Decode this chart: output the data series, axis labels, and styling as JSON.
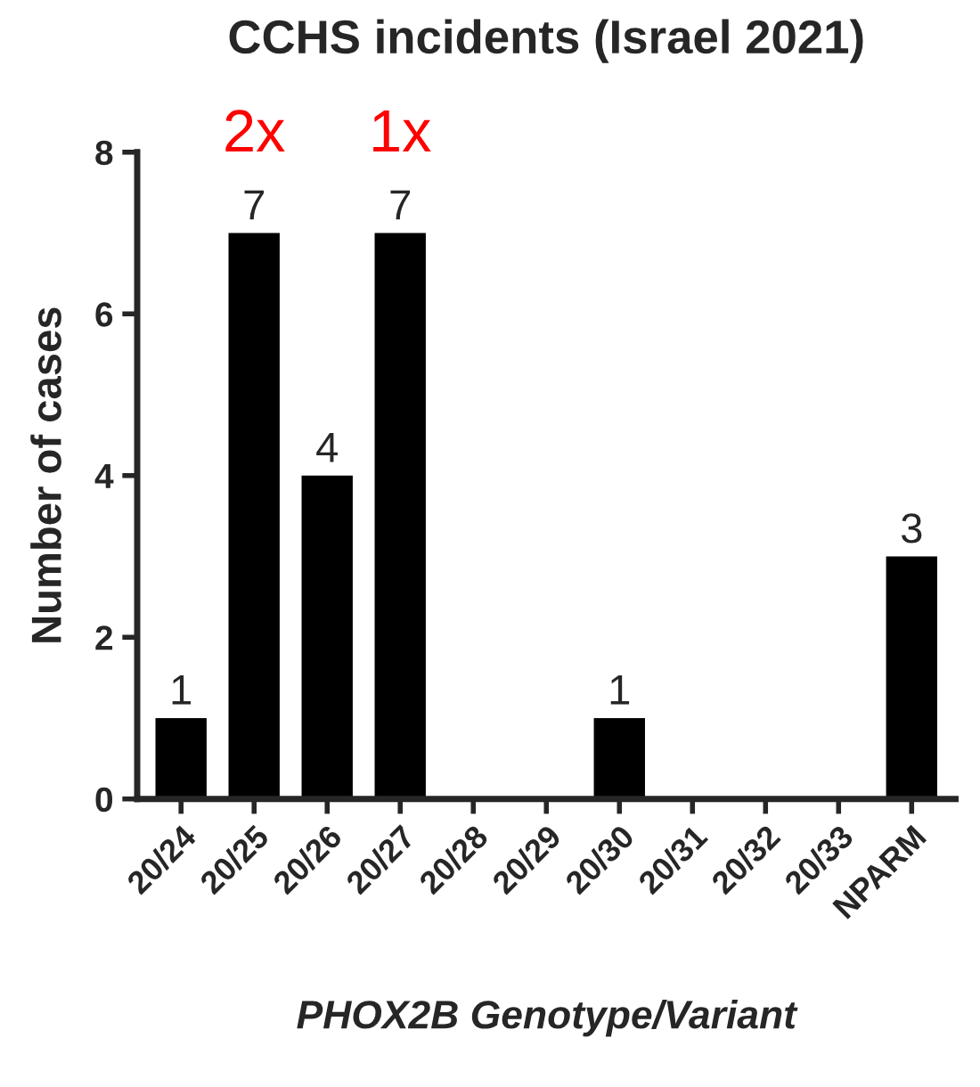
{
  "chart_data": {
    "type": "bar",
    "title": "CCHS incidents (Israel 2021)",
    "xlabel": "PHOX2B Genotype/Variant",
    "ylabel": "Number of cases",
    "categories": [
      "20/24",
      "20/25",
      "20/26",
      "20/27",
      "20/28",
      "20/29",
      "20/30",
      "20/31",
      "20/32",
      "20/33",
      "NPARM"
    ],
    "values": [
      1,
      7,
      4,
      7,
      0,
      0,
      1,
      0,
      0,
      0,
      3
    ],
    "value_labels": [
      "1",
      "7",
      "4",
      "7",
      null,
      null,
      "1",
      null,
      null,
      null,
      "3"
    ],
    "color": "#000000",
    "ylim": [
      0,
      8
    ],
    "yticks": [
      0,
      2,
      4,
      6,
      8
    ],
    "grid": false,
    "annotations": [
      {
        "text": "2x",
        "x": "20/25",
        "y": 7
      },
      {
        "text": "1x",
        "x": "20/27",
        "y": 7
      }
    ]
  }
}
